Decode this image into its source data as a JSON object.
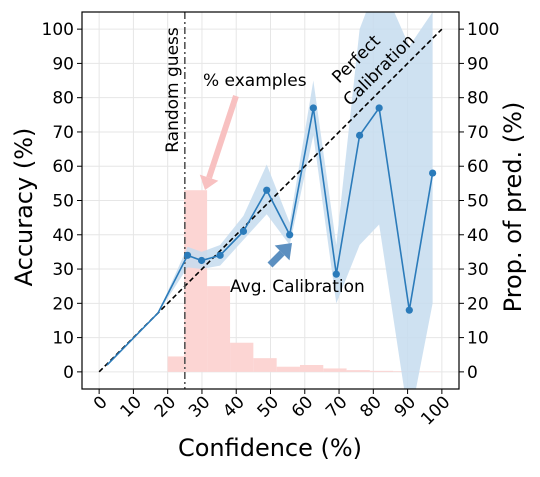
{
  "chart_data": {
    "type": "line",
    "xlabel": "Confidence (%)",
    "ylabel": "Accuracy (%)",
    "y2label": "Prop. of pred. (%)",
    "xlim": [
      -5,
      105
    ],
    "ylim": [
      -5,
      105
    ],
    "x_ticks": [
      "0",
      "10",
      "20",
      "30",
      "40",
      "50",
      "60",
      "70",
      "80",
      "90",
      "100"
    ],
    "y_ticks": [
      "0",
      "10",
      "20",
      "30",
      "40",
      "50",
      "60",
      "70",
      "80",
      "90",
      "100"
    ],
    "y2_ticks": [
      "0",
      "10",
      "20",
      "30",
      "40",
      "50",
      "60",
      "70",
      "80",
      "90",
      "100"
    ],
    "grid": true,
    "colors": {
      "calibration_line": "#2b7bba",
      "calibration_band": "#c6dcef",
      "histogram": "#fcd5d3",
      "pointer_arrow": "#f8c1c1",
      "calibration_arrow": "#5b8fc0",
      "perfect_line": "#000000",
      "random_line": "#555555"
    },
    "series": [
      {
        "x": [
          2.3,
          17.2,
          25.8,
          29.9,
          35.3,
          42.1,
          48.9,
          55.6,
          62.5,
          69.2,
          76.0,
          81.7,
          90.5,
          97.3
        ],
        "values": [
          2.0,
          17.2,
          34.0,
          32.5,
          34.0,
          41.0,
          53.0,
          40.0,
          77.0,
          28.5,
          69.0,
          77.0,
          18.0,
          58.0
        ],
        "lower": [
          2.0,
          17.2,
          30.5,
          30.0,
          31.0,
          38.5,
          46.0,
          37.0,
          69.0,
          20.0,
          37.0,
          43.0,
          -15.0,
          20.0
        ],
        "upper": [
          2.0,
          17.2,
          36.5,
          35.0,
          37.0,
          45.5,
          60.5,
          43.5,
          85.0,
          37.0,
          100.0,
          115.0,
          95.0,
          105.0
        ],
        "markers": [
          false,
          false,
          true,
          true,
          true,
          true,
          true,
          true,
          true,
          true,
          true,
          true,
          true,
          true
        ]
      }
    ],
    "histogram": {
      "bin_edges": [
        20,
        24.8,
        31.5,
        38.2,
        45.0,
        51.8,
        58.6,
        65.4,
        72.2,
        79.0,
        85.8,
        92.6,
        99.4
      ],
      "values": [
        4.5,
        53,
        25,
        8.5,
        4,
        1.5,
        2,
        1,
        0.5,
        0.3,
        0.2,
        0.1
      ]
    },
    "random_guess_x": 25,
    "annotations": {
      "random_guess": "Random guess",
      "examples": "% examples",
      "perfect_line1": "Perfect",
      "perfect_line2": "Calibration",
      "avg_calibration": "Avg. Calibration"
    }
  }
}
